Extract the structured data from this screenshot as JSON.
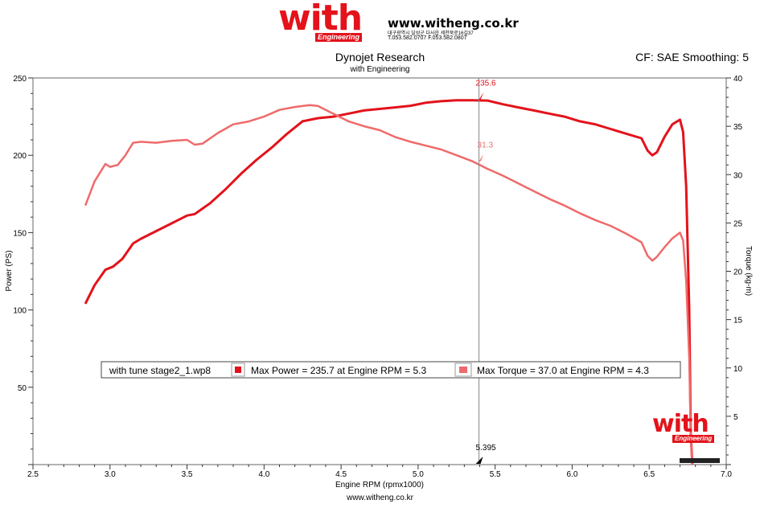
{
  "header": {
    "logo_word": "with",
    "logo_tag": "Engineering",
    "url": "www.witheng.co.kr",
    "address": "대구광역시 달성군 다사읍 세천북로16길37",
    "phone": "T.053.582.0707 F.053.582.0807"
  },
  "title": "Dynojet Research",
  "subtitle": "with Engineering",
  "cf_info": "CF: SAE Smoothing: 5",
  "footer_url": "www.witheng.co.kr",
  "watermark": {
    "word": "with",
    "tag": "Engineering"
  },
  "colors": {
    "power": "#e3121b",
    "torque": "#ef6a6a",
    "cursor": "#888888",
    "brand": "#e3121b"
  },
  "chart_data": {
    "type": "line",
    "xlabel": "Engine RPM (rpmx1000)",
    "ylabel": "Power (PS)",
    "y2label": "Torque (kg-m)",
    "xlim": [
      2.5,
      7.0
    ],
    "ylim": [
      0,
      250
    ],
    "y2lim": [
      0,
      40
    ],
    "x_ticks": [
      "2.5",
      "3.0",
      "3.5",
      "4.0",
      "4.5",
      "5.0",
      "5.5",
      "6.0",
      "6.5",
      "7.0"
    ],
    "y_ticks": [
      "50",
      "100",
      "150",
      "200",
      "250"
    ],
    "y2_ticks": [
      "5",
      "10",
      "15",
      "20",
      "25",
      "30",
      "35",
      "40"
    ],
    "grid": false,
    "cursor": {
      "x": 5.395,
      "label": "5.395",
      "power_label": "235.6",
      "torque_label": "31.3"
    },
    "legend": {
      "run_name": "with tune stage2_1.wp8",
      "entries": [
        "Max Power = 235.7 at Engine RPM = 5.3",
        "Max Torque = 37.0 at Engine RPM = 4.3"
      ]
    },
    "series": [
      {
        "name": "Power",
        "axis": "left",
        "x": [
          2.84,
          2.9,
          2.97,
          3.02,
          3.08,
          3.15,
          3.2,
          3.3,
          3.4,
          3.5,
          3.55,
          3.65,
          3.75,
          3.85,
          3.95,
          4.05,
          4.15,
          4.25,
          4.35,
          4.45,
          4.55,
          4.65,
          4.75,
          4.85,
          4.95,
          5.05,
          5.15,
          5.25,
          5.35,
          5.45,
          5.55,
          5.65,
          5.75,
          5.85,
          5.95,
          6.05,
          6.15,
          6.25,
          6.35,
          6.45,
          6.49,
          6.52,
          6.55,
          6.6,
          6.65,
          6.7,
          6.72,
          6.74,
          6.76,
          6.77,
          6.78
        ],
        "values": [
          104,
          116,
          126,
          128,
          133,
          143,
          146,
          151,
          156,
          161,
          162,
          169,
          178,
          188,
          197,
          205,
          214,
          222,
          224,
          225,
          227,
          229,
          230,
          231,
          232,
          234,
          235,
          235.6,
          235.6,
          235.4,
          233,
          231,
          229,
          227,
          225,
          222,
          220,
          217,
          214,
          211,
          203,
          200,
          202,
          212,
          220,
          223,
          215,
          180,
          100,
          20,
          0
        ]
      },
      {
        "name": "Torque",
        "axis": "right",
        "x": [
          2.84,
          2.9,
          2.97,
          3.0,
          3.05,
          3.1,
          3.15,
          3.2,
          3.3,
          3.4,
          3.5,
          3.55,
          3.6,
          3.7,
          3.8,
          3.9,
          4.0,
          4.1,
          4.2,
          4.3,
          4.35,
          4.45,
          4.55,
          4.65,
          4.75,
          4.85,
          4.95,
          5.05,
          5.15,
          5.25,
          5.35,
          5.45,
          5.55,
          5.65,
          5.75,
          5.85,
          5.95,
          6.05,
          6.15,
          6.25,
          6.35,
          6.45,
          6.49,
          6.52,
          6.55,
          6.6,
          6.65,
          6.7,
          6.72,
          6.74,
          6.76,
          6.77,
          6.78
        ],
        "values": [
          26.8,
          29.3,
          31.1,
          30.8,
          31.0,
          32.0,
          33.3,
          33.4,
          33.3,
          33.5,
          33.6,
          33.1,
          33.2,
          34.3,
          35.2,
          35.5,
          36.0,
          36.7,
          37.0,
          37.2,
          37.1,
          36.3,
          35.5,
          35.0,
          34.6,
          33.9,
          33.4,
          33.0,
          32.6,
          32.0,
          31.4,
          30.6,
          29.9,
          29.1,
          28.3,
          27.5,
          26.8,
          26.0,
          25.3,
          24.7,
          23.9,
          23.0,
          21.6,
          21.1,
          21.5,
          22.5,
          23.4,
          24.0,
          23.2,
          19.0,
          11.0,
          3.0,
          0
        ]
      }
    ]
  }
}
